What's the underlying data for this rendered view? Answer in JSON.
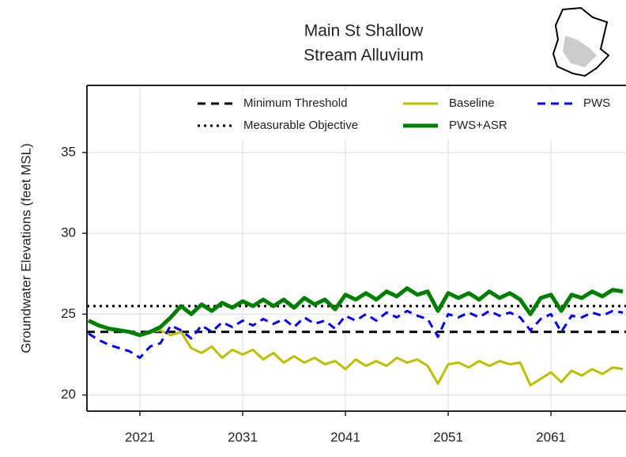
{
  "chart_data": {
    "type": "line",
    "title": [
      "Main St Shallow",
      "Stream Alluvium"
    ],
    "ylabel": "Groundwater Elevations (feet MSL)",
    "x": [
      2016,
      2017,
      2018,
      2019,
      2020,
      2021,
      2022,
      2023,
      2024,
      2025,
      2026,
      2027,
      2028,
      2029,
      2030,
      2031,
      2032,
      2033,
      2034,
      2035,
      2036,
      2037,
      2038,
      2039,
      2040,
      2041,
      2042,
      2043,
      2044,
      2045,
      2046,
      2047,
      2048,
      2049,
      2050,
      2051,
      2052,
      2053,
      2054,
      2055,
      2056,
      2057,
      2058,
      2059,
      2060,
      2061,
      2062,
      2063,
      2064,
      2065,
      2066,
      2067,
      2068
    ],
    "xlim": [
      2015.85,
      2068.3
    ],
    "xticks": [
      2021,
      2031,
      2041,
      2051,
      2061
    ],
    "ylim": [
      19.0,
      39.15
    ],
    "yticks": [
      20,
      25,
      30,
      35
    ],
    "grid": true,
    "hlines": [
      {
        "name": "Minimum Threshold",
        "value": 23.9,
        "color": "#000000",
        "style": "dashed"
      },
      {
        "name": "Measurable Objective",
        "value": 25.5,
        "color": "#000000",
        "style": "dotted"
      }
    ],
    "series": [
      {
        "name": "Baseline",
        "color": "#bfbf00",
        "style": "solid",
        "values": [
          24.6,
          24.3,
          24.1,
          24.0,
          23.9,
          23.7,
          23.9,
          24.0,
          23.7,
          23.9,
          22.9,
          22.6,
          23.0,
          22.3,
          22.8,
          22.5,
          22.8,
          22.2,
          22.6,
          22.0,
          22.4,
          22.0,
          22.3,
          21.9,
          22.1,
          21.6,
          22.2,
          21.8,
          22.1,
          21.8,
          22.3,
          22.0,
          22.2,
          21.8,
          20.7,
          21.9,
          22.0,
          21.7,
          22.1,
          21.8,
          22.1,
          21.9,
          22.0,
          20.6,
          21.0,
          21.4,
          20.8,
          21.5,
          21.2,
          21.6,
          21.3,
          21.7,
          21.6
        ]
      },
      {
        "name": "PWS+ASR",
        "color": "#008000",
        "style": "thick",
        "values": [
          24.6,
          24.3,
          24.1,
          24.0,
          23.9,
          23.7,
          23.9,
          24.2,
          24.8,
          25.5,
          25.0,
          25.6,
          25.2,
          25.7,
          25.4,
          25.8,
          25.5,
          25.9,
          25.5,
          25.9,
          25.4,
          26.0,
          25.6,
          25.9,
          25.3,
          26.2,
          25.9,
          26.3,
          25.9,
          26.4,
          26.1,
          26.6,
          26.2,
          26.4,
          25.2,
          26.3,
          26.0,
          26.3,
          25.9,
          26.4,
          26.0,
          26.3,
          25.9,
          25.0,
          26.0,
          26.2,
          25.2,
          26.2,
          26.0,
          26.4,
          26.1,
          26.5,
          26.4
        ]
      },
      {
        "name": "PWS",
        "color": "#0000ff",
        "style": "dashed",
        "values": [
          23.8,
          23.4,
          23.1,
          22.9,
          22.7,
          22.3,
          23.0,
          23.2,
          24.3,
          24.0,
          23.5,
          24.3,
          23.9,
          24.5,
          24.2,
          24.6,
          24.3,
          24.7,
          24.4,
          24.7,
          24.2,
          24.8,
          24.4,
          24.6,
          24.1,
          24.9,
          24.6,
          25.0,
          24.6,
          25.1,
          24.8,
          25.2,
          24.9,
          24.7,
          23.6,
          25.0,
          24.8,
          25.1,
          24.8,
          25.2,
          24.9,
          25.1,
          24.8,
          24.0,
          24.7,
          25.0,
          23.9,
          24.9,
          24.8,
          25.1,
          24.9,
          25.2,
          25.1
        ]
      }
    ]
  }
}
